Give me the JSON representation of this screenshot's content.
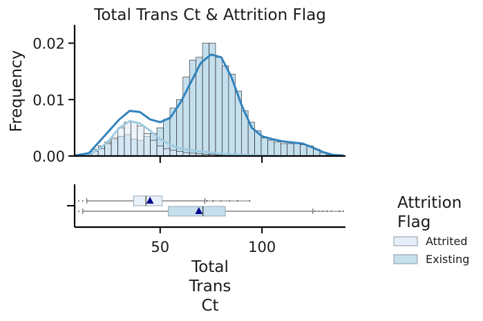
{
  "chart_data": [
    {
      "type": "histogram",
      "title": "Total Trans Ct & Attrition Flag",
      "ylabel": "Frequency",
      "xlim": [
        8,
        141
      ],
      "ylim": [
        0,
        0.023
      ],
      "yticks": [
        0.0,
        0.01,
        0.02
      ],
      "ytick_labels": [
        "0.00",
        "0.01",
        "0.02"
      ],
      "xticks": [
        50,
        100
      ],
      "grid": false,
      "bar_edges": [
        10,
        13.2,
        16.4,
        19.6,
        22.8,
        26,
        29.2,
        32.4,
        35.6,
        38.8,
        42,
        45.2,
        48.4,
        51.6,
        54.8,
        58,
        61.2,
        64.4,
        67.6,
        70.8,
        74,
        77.2,
        80.4,
        83.6,
        86.8,
        90,
        93.2,
        96.4,
        99.6,
        102.8,
        106,
        109.2,
        112.4,
        115.6,
        118.8,
        122,
        125.2,
        128.4,
        131.6,
        134.8,
        138
      ],
      "series": [
        {
          "name": "Attrited",
          "color": "#deebf7",
          "values": [
            0.0002,
            0.0004,
            0.0008,
            0.0013,
            0.0022,
            0.0032,
            0.005,
            0.006,
            0.006,
            0.0053,
            0.004,
            0.0028,
            0.0018,
            0.0013,
            0.001,
            0.0008,
            0.0006,
            0.0005,
            0.0004,
            0.0003,
            0.0003,
            0.0002,
            0.0002,
            0.0001,
            0.0001,
            0.0001,
            0,
            0,
            0,
            0,
            0,
            0,
            0,
            0,
            0,
            0,
            0,
            0,
            0,
            0
          ],
          "kde": [
            [
              8,
              0
            ],
            [
              15,
              0.0003
            ],
            [
              20,
              0.0012
            ],
            [
              25,
              0.0028
            ],
            [
              30,
              0.005
            ],
            [
              35,
              0.0062
            ],
            [
              40,
              0.0058
            ],
            [
              45,
              0.0045
            ],
            [
              50,
              0.003
            ],
            [
              55,
              0.002
            ],
            [
              60,
              0.0013
            ],
            [
              70,
              0.0008
            ],
            [
              80,
              0.0004
            ],
            [
              90,
              0.0002
            ],
            [
              100,
              0.0001
            ],
            [
              110,
              0
            ]
          ]
        },
        {
          "name": "Existing",
          "color": "#9ecae1",
          "values": [
            0.0001,
            0.0004,
            0.0012,
            0.0018,
            0.0025,
            0.003,
            0.0035,
            0.0038,
            0.003,
            0.0028,
            0.0035,
            0.004,
            0.005,
            0.0065,
            0.0085,
            0.01,
            0.014,
            0.017,
            0.0175,
            0.02,
            0.02,
            0.0175,
            0.016,
            0.0145,
            0.0115,
            0.008,
            0.006,
            0.0045,
            0.0032,
            0.0028,
            0.0025,
            0.0022,
            0.0022,
            0.0022,
            0.002,
            0.0018,
            0.0012,
            0.0006,
            0.0002,
            0.0001
          ],
          "kde": [
            [
              8,
              0.0001
            ],
            [
              15,
              0.0005
            ],
            [
              20,
              0.0025
            ],
            [
              25,
              0.0045
            ],
            [
              30,
              0.0065
            ],
            [
              35,
              0.008
            ],
            [
              40,
              0.0078
            ],
            [
              45,
              0.0065
            ],
            [
              50,
              0.006
            ],
            [
              55,
              0.0068
            ],
            [
              60,
              0.0095
            ],
            [
              65,
              0.013
            ],
            [
              70,
              0.0165
            ],
            [
              75,
              0.018
            ],
            [
              80,
              0.0175
            ],
            [
              85,
              0.014
            ],
            [
              90,
              0.009
            ],
            [
              95,
              0.005
            ],
            [
              100,
              0.0035
            ],
            [
              105,
              0.003
            ],
            [
              110,
              0.0026
            ],
            [
              115,
              0.0024
            ],
            [
              120,
              0.0022
            ],
            [
              125,
              0.0015
            ],
            [
              130,
              0.0007
            ],
            [
              135,
              0.0002
            ],
            [
              140,
              0.0001
            ]
          ]
        }
      ]
    },
    {
      "type": "boxplot",
      "xlabel": "Total\nTrans\nCt",
      "xlim": [
        8,
        141
      ],
      "xticks": [
        50,
        100
      ],
      "xtick_labels": [
        "50",
        "100"
      ],
      "series": [
        {
          "name": "Attrited",
          "color": "#deebf7",
          "whisker_low": 14,
          "q1": 37,
          "median": 43,
          "q3": 51,
          "whisker_high": 72,
          "mean": 45,
          "outliers_low": [
            10,
            12
          ],
          "outliers_high": [
            73,
            76,
            80,
            84,
            88,
            94
          ]
        },
        {
          "name": "Existing",
          "color": "#9ecae1",
          "whisker_low": 12,
          "q1": 54,
          "median": 71,
          "q3": 82,
          "whisker_high": 125,
          "mean": 69,
          "outliers_low": [
            10
          ],
          "outliers_high": [
            126,
            128,
            130,
            132,
            134,
            138,
            140
          ]
        }
      ]
    }
  ],
  "legend": {
    "title": "Attrition\nFlag",
    "placement": "right",
    "entries": [
      {
        "label": "Attrited",
        "color": "#deebf7"
      },
      {
        "label": "Existing",
        "color": "#9ecae1"
      }
    ]
  }
}
